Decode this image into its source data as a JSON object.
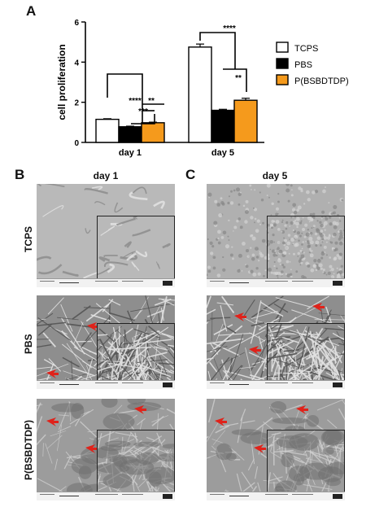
{
  "panels": {
    "a_label": "A",
    "b_label": "B",
    "c_label": "C",
    "col_b_title": "day 1",
    "col_c_title": "day 5",
    "row_labels": [
      "TCPS",
      "PBS",
      "P(BSBDTDP)"
    ]
  },
  "colors": {
    "TCPS": "#ffffff",
    "PBS": "#000000",
    "P(BSBDTDP)": "#f59a1c",
    "arrow": "#e0221a"
  },
  "chart_data": {
    "type": "bar",
    "categories": [
      "day 1",
      "day 5"
    ],
    "ylabel": "cell proliferation",
    "xlabel": "",
    "ylim": [
      0,
      6
    ],
    "yticks": [
      "0",
      "2",
      "4",
      "6"
    ],
    "series": [
      {
        "name": "TCPS",
        "values": [
          1.15,
          4.75
        ],
        "errors": [
          0.03,
          0.15
        ]
      },
      {
        "name": "PBS",
        "values": [
          0.78,
          1.6
        ],
        "errors": [
          0.03,
          0.05
        ]
      },
      {
        "name": "P(BSBDTDP)",
        "values": [
          0.98,
          2.1
        ],
        "errors": [
          0.03,
          0.1
        ]
      }
    ],
    "legend_position": "right",
    "grid": false,
    "significance": [
      {
        "label": "****",
        "group": "day 1",
        "compare": "TCPS vs PBS"
      },
      {
        "label": "**",
        "group": "day 1",
        "compare": "TCPS vs P(BSBDTDP)"
      },
      {
        "label": "***",
        "group": "day 1",
        "compare": "PBS vs P(BSBDTDP)"
      },
      {
        "label": "****",
        "group": "day 5",
        "compare": "TCPS vs PBS"
      },
      {
        "label": "**",
        "group": "day 5",
        "compare": "TCPS vs P(BSBDTDP)"
      }
    ]
  }
}
